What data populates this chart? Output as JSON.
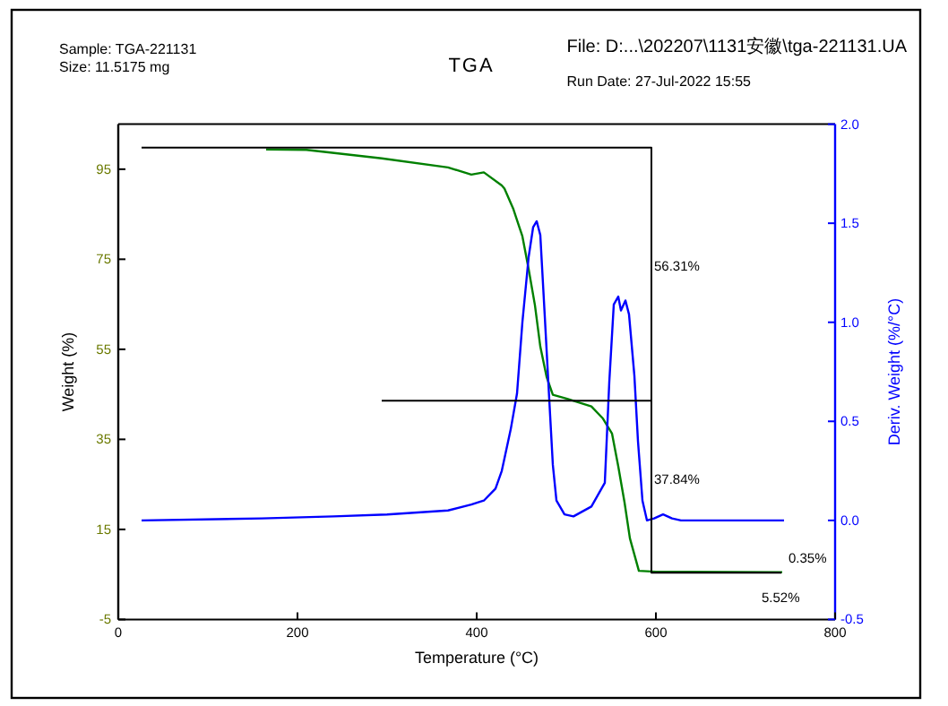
{
  "chart_data": {
    "type": "line",
    "title": "TGA",
    "annotations": [
      "Sample: TGA-221131",
      "Size:  11.5175 mg",
      "File: D:...\\202207\\1131安徽\\tga-221131.UA",
      "Run Date: 27-Jul-2022 15:55",
      "56.31%",
      "37.84%",
      "0.35%",
      "5.52%"
    ],
    "xlabel": "Temperature (°C)",
    "ylabel": "Weight (%)",
    "y2label": "Deriv. Weight (%/°C)",
    "xlim": [
      0,
      800
    ],
    "xticks": [
      0,
      200,
      400,
      600,
      800
    ],
    "ylim": [
      -5,
      105
    ],
    "yticks": [
      -5,
      15,
      35,
      55,
      75,
      95
    ],
    "y2lim": [
      -0.5,
      2.0
    ],
    "y2ticks": [
      {
        "value": -0.5,
        "label": "-0.5"
      },
      {
        "value": 0,
        "label": "0.0"
      },
      {
        "value": 0.5,
        "label": "0.5"
      },
      {
        "value": 1,
        "label": "1.0"
      },
      {
        "value": 1.5,
        "label": "1.5"
      },
      {
        "value": 2,
        "label": "2.0"
      }
    ],
    "grid": false,
    "marker": "none",
    "line_style": "solid",
    "series": [
      {
        "color": "#008000",
        "axis": "y",
        "x": [
          165,
          210,
          294,
          368,
          394,
          408,
          428,
          431,
          441,
          451,
          458,
          465,
          471,
          478,
          485,
          501,
          528,
          541,
          551,
          558,
          565,
          571,
          581,
          600,
          741
        ],
        "values": [
          99.4,
          99.3,
          97.4,
          95.4,
          93.8,
          94.3,
          91.4,
          90.7,
          86.1,
          80.1,
          72.8,
          64.8,
          55.6,
          48.9,
          44.9,
          44.0,
          42.3,
          39.6,
          36.3,
          29.0,
          21.0,
          13.0,
          5.8,
          5.6,
          5.5
        ]
      },
      {
        "color": "#0000ff",
        "axis": "y2",
        "x": [
          26,
          160,
          240,
          300,
          368,
          394,
          408,
          421,
          428,
          438,
          445,
          451,
          458,
          463,
          467,
          471,
          476,
          481,
          485,
          489,
          498,
          508,
          528,
          543,
          548,
          553,
          558,
          561,
          566,
          570,
          576,
          580,
          585,
          590,
          598,
          608,
          618,
          628,
          743
        ],
        "values": [
          0.0,
          0.01,
          0.02,
          0.03,
          0.05,
          0.08,
          0.1,
          0.16,
          0.25,
          0.46,
          0.64,
          1.0,
          1.33,
          1.48,
          1.51,
          1.44,
          1.03,
          0.61,
          0.28,
          0.1,
          0.03,
          0.02,
          0.07,
          0.19,
          0.7,
          1.09,
          1.13,
          1.06,
          1.11,
          1.04,
          0.73,
          0.4,
          0.1,
          0.0,
          0.01,
          0.03,
          0.01,
          0.0,
          0.0
        ]
      },
      {
        "color": "#000000",
        "axis": "y",
        "x": [
          26,
          595,
          595,
          595,
          740
        ],
        "values": [
          99.8,
          99.8,
          43.6,
          5.4,
          5.4
        ]
      },
      {
        "color": "#000000",
        "axis": "y",
        "x": [
          294,
          595
        ],
        "values": [
          43.6,
          43.6
        ]
      }
    ]
  }
}
